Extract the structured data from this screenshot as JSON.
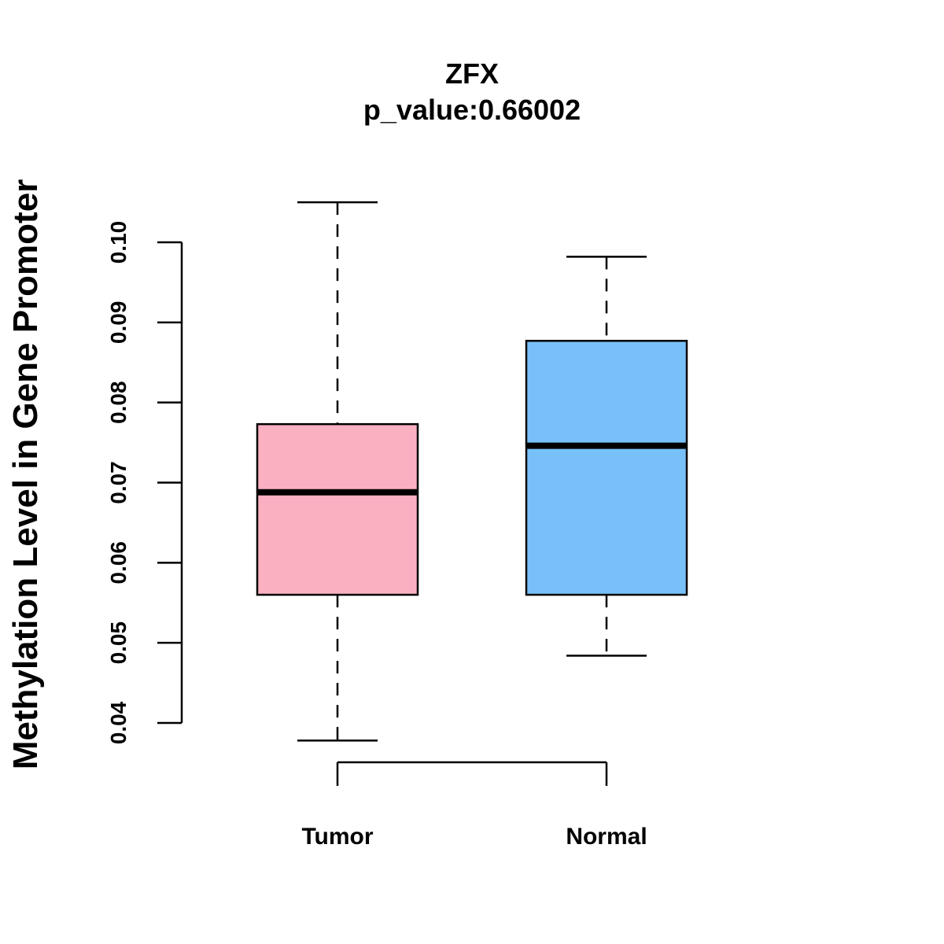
{
  "chart_data": {
    "type": "boxplot",
    "title": "ZFX",
    "subtitle": "p_value:0.66002",
    "ylabel": "Methylation Level in Gene Promoter",
    "xlabel": "",
    "ylim": [
      0.04,
      0.1
    ],
    "yticks": [
      "0.04",
      "0.05",
      "0.06",
      "0.07",
      "0.08",
      "0.09",
      "0.10"
    ],
    "grid": false,
    "categories": [
      "Tumor",
      "Normal"
    ],
    "boxes": [
      {
        "name": "Tumor",
        "min": 0.0378,
        "q1": 0.056,
        "median": 0.0688,
        "q3": 0.0773,
        "max": 0.105,
        "color": "#FBB0C2"
      },
      {
        "name": "Normal",
        "min": 0.0484,
        "q1": 0.056,
        "median": 0.0746,
        "q3": 0.0877,
        "max": 0.0982,
        "color": "#78C1F8"
      }
    ]
  }
}
